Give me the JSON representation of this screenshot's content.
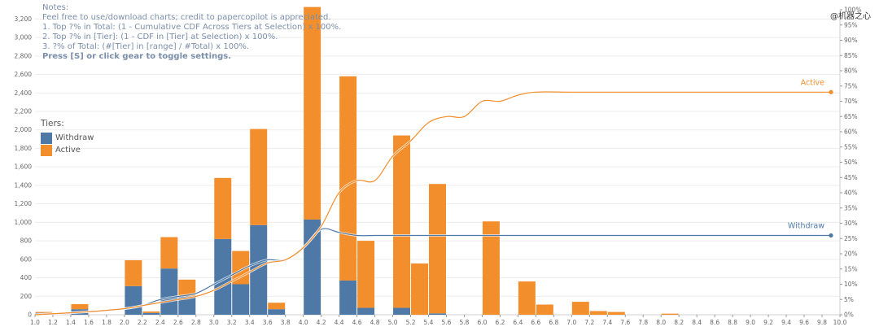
{
  "watermark": "@机器之心",
  "notes": {
    "heading": "Notes:",
    "lines": [
      "Feel free to use/download charts; credit to papercopilot is appreciated.",
      "1. Top ?% in Total: (1 - Cumulative CDF Across Tiers at Selection) x 100%.",
      "2. Top ?% in [Tier]: (1 - CDF in [Tier] at Selection) x 100%.",
      "3. ?% of Total: (#[Tier] in [range] / #Total) x 100%."
    ],
    "hint": "Press [S] or click gear to toggle settings."
  },
  "legend": {
    "title": "Tiers:",
    "items": [
      {
        "label": "Withdraw",
        "color": "#4e79a7"
      },
      {
        "label": "Active",
        "color": "#f28e2b"
      }
    ]
  },
  "chart_data": {
    "type": "bar",
    "stacked": true,
    "bin_width": 0.2,
    "x_bins": [
      1.0,
      1.4,
      2.0,
      2.2,
      2.4,
      2.6,
      3.0,
      3.2,
      3.4,
      3.6,
      4.0,
      4.4,
      4.6,
      5.0,
      5.2,
      5.4,
      6.0,
      6.4,
      6.6,
      7.0,
      7.2,
      7.4,
      8.0
    ],
    "series": [
      {
        "name": "Withdraw",
        "color": "#4e79a7",
        "values": [
          20,
          60,
          310,
          20,
          500,
          200,
          820,
          330,
          970,
          60,
          1030,
          370,
          75,
          75,
          0,
          15,
          0,
          0,
          0,
          0,
          0,
          0,
          0
        ]
      },
      {
        "name": "Active",
        "color": "#f28e2b",
        "values": [
          10,
          55,
          280,
          15,
          340,
          180,
          660,
          360,
          1040,
          70,
          2300,
          2210,
          725,
          1865,
          555,
          1400,
          1010,
          360,
          110,
          140,
          40,
          30,
          12
        ]
      }
    ],
    "cumulative_lines": [
      {
        "name": "Withdraw",
        "color": "#4e79a7",
        "end_value": 26,
        "points": [
          [
            1.0,
            0
          ],
          [
            1.6,
            1
          ],
          [
            2.0,
            2
          ],
          [
            2.2,
            3
          ],
          [
            2.4,
            5
          ],
          [
            2.6,
            6
          ],
          [
            2.8,
            7
          ],
          [
            3.0,
            10
          ],
          [
            3.2,
            13
          ],
          [
            3.4,
            16
          ],
          [
            3.6,
            18
          ],
          [
            3.8,
            18
          ],
          [
            4.0,
            22
          ],
          [
            4.2,
            28
          ],
          [
            4.4,
            27
          ],
          [
            4.6,
            26
          ],
          [
            4.8,
            26
          ],
          [
            5.0,
            26
          ],
          [
            5.4,
            26
          ],
          [
            6.0,
            26
          ],
          [
            9.9,
            26
          ]
        ]
      },
      {
        "name": "Active",
        "color": "#f28e2b",
        "end_value": 73,
        "points": [
          [
            1.0,
            0
          ],
          [
            1.6,
            1
          ],
          [
            2.0,
            2
          ],
          [
            2.2,
            3
          ],
          [
            2.4,
            4
          ],
          [
            2.6,
            5
          ],
          [
            2.8,
            6
          ],
          [
            3.0,
            8
          ],
          [
            3.2,
            11
          ],
          [
            3.4,
            14
          ],
          [
            3.6,
            17
          ],
          [
            3.8,
            18
          ],
          [
            4.0,
            22
          ],
          [
            4.2,
            29
          ],
          [
            4.4,
            40
          ],
          [
            4.6,
            44
          ],
          [
            4.8,
            44
          ],
          [
            5.0,
            52
          ],
          [
            5.2,
            57
          ],
          [
            5.4,
            63
          ],
          [
            5.6,
            65
          ],
          [
            5.8,
            65
          ],
          [
            6.0,
            70
          ],
          [
            6.2,
            70
          ],
          [
            6.4,
            72
          ],
          [
            6.6,
            73
          ],
          [
            7.0,
            73
          ],
          [
            7.6,
            73
          ],
          [
            8.0,
            73
          ],
          [
            9.9,
            73
          ]
        ]
      }
    ],
    "x_ticks": [
      "1.0",
      "1.2",
      "1.4",
      "1.6",
      "1.8",
      "2.0",
      "2.2",
      "2.4",
      "2.6",
      "2.8",
      "3.0",
      "3.2",
      "3.4",
      "3.6",
      "3.8",
      "4.0",
      "4.2",
      "4.4",
      "4.6",
      "4.8",
      "5.0",
      "5.2",
      "5.4",
      "5.6",
      "5.8",
      "6.0",
      "6.2",
      "6.4",
      "6.6",
      "6.8",
      "7.0",
      "7.2",
      "7.4",
      "7.6",
      "7.8",
      "8.0",
      "8.2",
      "8.4",
      "8.6",
      "8.8",
      "9.0",
      "9.2",
      "9.4",
      "9.6",
      "9.8",
      "10.0"
    ],
    "y_ticks": [
      "0",
      "200",
      "400",
      "600",
      "800",
      "1,000",
      "1,200",
      "1,400",
      "1,600",
      "1,800",
      "2,000",
      "2,200",
      "2,400",
      "2,600",
      "2,800",
      "3,000",
      "3,200"
    ],
    "y2_ticks": [
      "0%",
      "5%",
      "10%",
      "15%",
      "20%",
      "25%",
      "30%",
      "35%",
      "40%",
      "45%",
      "50%",
      "55%",
      "60%",
      "65%",
      "70%",
      "75%",
      "80%",
      "85%",
      "90%",
      "95%",
      "100%"
    ],
    "xlim": [
      1.0,
      10.0
    ],
    "ylim": [
      0,
      3300
    ],
    "y2lim": [
      0,
      100
    ],
    "grid": true
  }
}
